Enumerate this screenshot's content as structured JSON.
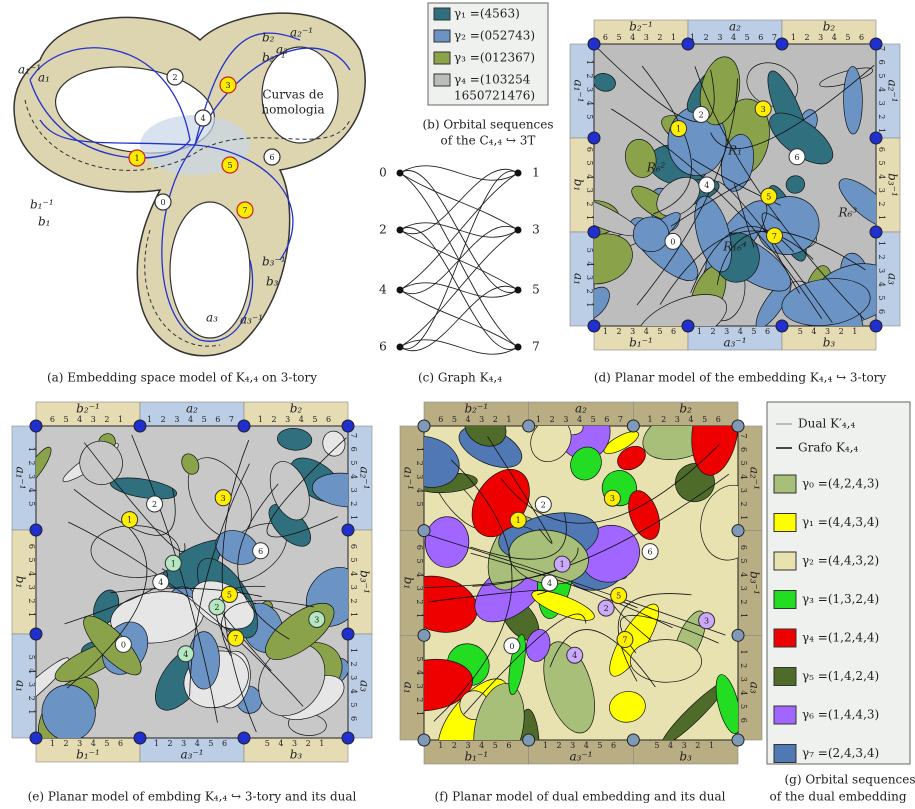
{
  "captions": {
    "a": "(a) Embedding space model of K₄,₄ on 3-tory",
    "b": [
      "(b) Orbital sequences",
      "of the C₄,₄ ↪ 3T"
    ],
    "c": "(c) Graph K₄,₄",
    "d": "(d) Planar model of the embedding K₄,₄ ↪ 3-tory",
    "e": "(e) Planar model of embding K₄,₄ ↪ 3-tory and its dual",
    "f": "(f) Planar model of dual embedding and its dual",
    "g": [
      "(g) Orbital sequences",
      "of the dual embedding"
    ]
  },
  "panel_a": {
    "annotation": [
      "Curvas de",
      "homologia"
    ],
    "curve_labels": [
      "a₁⁻¹",
      "a₁",
      "b₁⁻¹",
      "b₁",
      "b₂",
      "a₂⁻¹",
      "a₂",
      "b₂⁻¹",
      "b₃⁻¹",
      "b₃",
      "a₃",
      "a₃⁻¹"
    ],
    "vertices": [
      "0",
      "1",
      "2",
      "3",
      "4",
      "5",
      "6",
      "7"
    ]
  },
  "legend_b": [
    {
      "label": [
        "γ₁ =(4563)"
      ],
      "color": "#2f6f7e"
    },
    {
      "label": [
        "γ₂ =(052743)"
      ],
      "color": "#6b93c4"
    },
    {
      "label": [
        "γ₃ =(012367)"
      ],
      "color": "#8aa34a"
    },
    {
      "label": [
        "γ₄ =(103254",
        "1650721476)"
      ],
      "color": "#bdbdbd"
    }
  ],
  "graph_c": {
    "left": [
      "0",
      "2",
      "4",
      "6"
    ],
    "right": [
      "1",
      "3",
      "5",
      "7"
    ]
  },
  "square_borders": {
    "top": [
      {
        "label": "b₂⁻¹",
        "digits": "6 5 4 3 2 1"
      },
      {
        "label": "a₂",
        "digits": "1 2 3 4 5 6 7"
      },
      {
        "label": "b₂",
        "digits": "1 2 3 4 5 6"
      }
    ],
    "bottom": [
      {
        "label": "b₁⁻¹",
        "digits": "1 2 3 4 5 6"
      },
      {
        "label": "a₃⁻¹",
        "digits": "1 2 3 4 5 6"
      },
      {
        "label": "b₃",
        "digits": "5 4 3 2 1"
      }
    ],
    "left": [
      {
        "label": "a₁⁻¹",
        "digits": "1 2 3 4 5"
      },
      {
        "label": "b₁",
        "digits": "6 5 4 3 2 1"
      },
      {
        "label": "a₁",
        "digits": "5 4 3 2 1"
      }
    ],
    "right": [
      {
        "label": "a₂⁻¹",
        "digits": "7 6 5 4 3 2 1"
      },
      {
        "label": "b₃⁻¹",
        "digits": "6 5 4 3 2 1"
      },
      {
        "label": "a₃",
        "digits": "1 2 3 4 5 6"
      }
    ]
  },
  "panel_d": {
    "vertices": [
      "0",
      "1",
      "2",
      "3",
      "4",
      "5",
      "6",
      "7"
    ],
    "regions": [
      "R₆²",
      "R₁",
      "R₁₆⁴",
      "R₆³"
    ]
  },
  "panel_e": {
    "vertices": [
      "0",
      "1",
      "2",
      "3",
      "4",
      "5",
      "6",
      "7"
    ],
    "dual_vertices": [
      "1",
      "2",
      "3",
      "4"
    ]
  },
  "panel_f": {
    "vertices": [
      "0",
      "1",
      "2",
      "3",
      "4",
      "5",
      "6",
      "7"
    ],
    "dual_vertices": [
      "1",
      "2",
      "3",
      "4"
    ]
  },
  "legend_g": {
    "lines": [
      {
        "label": "Dual K′₄,₄",
        "color": "#aaaaaa"
      },
      {
        "label": "Grafo K₄,₄",
        "color": "#111111"
      }
    ],
    "items": [
      {
        "label": "γ₀ =(4,2,4,3)",
        "color": "#a7bf78"
      },
      {
        "label": "γ₁ =(4,4,3,4)",
        "color": "#ffff00"
      },
      {
        "label": "γ₂ =(4,4,3,2)",
        "color": "#e8e2b0"
      },
      {
        "label": "γ₃ =(1,3,2,4)",
        "color": "#22dd22"
      },
      {
        "label": "γ₄ =(1,2,4,4)",
        "color": "#ee0000"
      },
      {
        "label": "γ₅ =(1,4,2,4)",
        "color": "#4f6b2a"
      },
      {
        "label": "γ₆ =(1,4,4,3)",
        "color": "#a066ff"
      },
      {
        "label": "γ₇ =(2,4,3,4)",
        "color": "#4f78b4"
      }
    ]
  }
}
